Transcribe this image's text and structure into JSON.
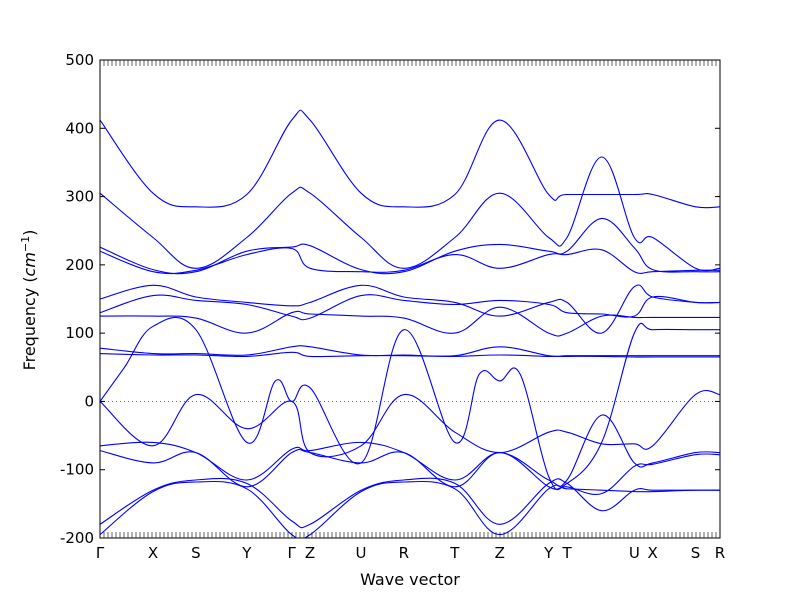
{
  "chart_data": {
    "type": "line",
    "title": "",
    "xlabel": "Wave vector",
    "ylabel": "Frequency (cm⁻¹)",
    "ylabel_parts": {
      "text": "Frequency (",
      "var": "cm",
      "exp": "−1",
      "close": ")"
    },
    "ylim": [
      -200,
      500
    ],
    "yticks": [
      -200,
      -100,
      0,
      100,
      200,
      300,
      400,
      500
    ],
    "xlim": [
      0,
      15.2
    ],
    "points": [
      {
        "label": "Γ",
        "x": 0.0
      },
      {
        "label": "X",
        "x": 1.3
      },
      {
        "label": "S",
        "x": 2.35
      },
      {
        "label": "Y",
        "x": 3.6
      },
      {
        "label": "Γ",
        "x": 4.7
      },
      {
        "label": "Z",
        "x": 5.15
      },
      {
        "label": "U",
        "x": 6.4
      },
      {
        "label": "R",
        "x": 7.45
      },
      {
        "label": "T",
        "x": 8.7
      },
      {
        "label": "Z",
        "x": 9.8
      },
      {
        "label": "Y",
        "x": 11.0
      },
      {
        "label": "T",
        "x": 11.45
      },
      {
        "label": "U",
        "x": 13.1
      },
      {
        "label": "X",
        "x": 13.55
      },
      {
        "label": "S",
        "x": 14.6
      },
      {
        "label": "R",
        "x": 15.2
      }
    ],
    "zero_line": true,
    "grid": false,
    "legend": "none",
    "color": "#0000ff",
    "series": [
      {
        "x": [
          0,
          1.3,
          2.35,
          3.6,
          4.7,
          5.15,
          6.4,
          7.45,
          8.7,
          9.8,
          11.0,
          11.45,
          13.1,
          13.55,
          14.6,
          15.2
        ],
        "y": [
          412,
          305,
          285,
          303,
          412,
          412,
          305,
          285,
          303,
          412,
          303,
          303,
          303,
          303,
          285,
          285
        ]
      },
      {
        "x": [
          0,
          1.3,
          2.35,
          3.6,
          4.7,
          5.15,
          6.4,
          7.45,
          8.7,
          9.8,
          11.0,
          11.45,
          12.3,
          13.1,
          13.55,
          14.6,
          15.2
        ],
        "y": [
          305,
          240,
          195,
          240,
          305,
          305,
          240,
          195,
          240,
          305,
          240,
          240,
          358,
          240,
          240,
          195,
          195
        ]
      },
      {
        "x": [
          0,
          1.3,
          2.35,
          3.6,
          4.7,
          5.15,
          6.4,
          7.45,
          8.7,
          9.8,
          11.0,
          11.45,
          12.3,
          13.1,
          13.55,
          14.6,
          15.2
        ],
        "y": [
          226,
          193,
          190,
          220,
          226,
          228,
          193,
          190,
          220,
          230,
          220,
          220,
          268,
          225,
          193,
          190,
          190
        ]
      },
      {
        "x": [
          0,
          1.3,
          2.35,
          3.6,
          4.7,
          5.15,
          6.4,
          7.45,
          8.7,
          9.8,
          11.0,
          11.45,
          12.3,
          13.1,
          13.55,
          14.6,
          15.2
        ],
        "y": [
          220,
          190,
          192,
          215,
          224,
          195,
          190,
          192,
          215,
          195,
          215,
          215,
          222,
          190,
          190,
          192,
          192
        ]
      },
      {
        "x": [
          0,
          1.3,
          2.35,
          3.6,
          4.7,
          5.15,
          6.4,
          7.45,
          8.7,
          9.8,
          11.0,
          11.45,
          12.3,
          13.1,
          13.55,
          14.6,
          15.2
        ],
        "y": [
          150,
          170,
          153,
          145,
          140,
          145,
          170,
          153,
          145,
          125,
          145,
          145,
          100,
          168,
          153,
          145,
          145
        ]
      },
      {
        "x": [
          0,
          1.3,
          2.35,
          3.6,
          4.7,
          5.15,
          6.4,
          7.45,
          8.7,
          9.8,
          11.0,
          11.45,
          12.3,
          13.1,
          13.55,
          14.6,
          15.2
        ],
        "y": [
          130,
          155,
          148,
          142,
          125,
          122,
          155,
          148,
          142,
          148,
          142,
          130,
          128,
          125,
          153,
          145,
          145
        ]
      },
      {
        "x": [
          0,
          1.3,
          2.35,
          3.6,
          4.7,
          5.15,
          6.4,
          7.45,
          8.7,
          9.8,
          11.0,
          11.45,
          12.3,
          13.1,
          13.55,
          14.6,
          15.2
        ],
        "y": [
          125,
          125,
          122,
          100,
          130,
          128,
          125,
          122,
          100,
          138,
          100,
          100,
          125,
          123,
          123,
          123,
          123
        ]
      },
      {
        "x": [
          0,
          1.3,
          2.35,
          3.6,
          4.7,
          5.15,
          6.4,
          7.45,
          8.7,
          9.8,
          11.0,
          11.45,
          12.3,
          13.1,
          13.55,
          14.6,
          15.2
        ],
        "y": [
          78,
          70,
          70,
          68,
          80,
          80,
          68,
          68,
          67,
          80,
          67,
          67,
          67,
          67,
          67,
          67,
          67
        ]
      },
      {
        "x": [
          0,
          1.3,
          2.35,
          3.6,
          4.7,
          5.15,
          6.4,
          7.45,
          8.7,
          9.8,
          11.0,
          11.45,
          12.3,
          13.1,
          13.55,
          14.6,
          15.2
        ],
        "y": [
          70,
          68,
          68,
          66,
          72,
          66,
          67,
          67,
          66,
          68,
          66,
          66,
          66,
          65,
          65,
          65,
          65
        ]
      },
      {
        "x": [
          0,
          0.6,
          1.3,
          2.35,
          3.6,
          4.3,
          4.7,
          5.15,
          6.4,
          7.45,
          8.7,
          9.3,
          9.8,
          10.3,
          11.0,
          11.45,
          12.3,
          13.1,
          13.55,
          14.6,
          15.2
        ],
        "y": [
          0,
          50,
          110,
          105,
          -60,
          30,
          0,
          20,
          -90,
          105,
          -60,
          40,
          30,
          40,
          -110,
          -120,
          -60,
          100,
          105,
          105,
          105
        ]
      },
      {
        "x": [
          0,
          1.3,
          2.35,
          3.6,
          4.7,
          5.15,
          6.4,
          7.45,
          8.7,
          9.8,
          11.0,
          11.45,
          12.3,
          13.1,
          13.55,
          14.6,
          15.2
        ],
        "y": [
          0,
          -65,
          10,
          -40,
          0,
          -75,
          -65,
          10,
          -45,
          -75,
          -45,
          -45,
          -62,
          -62,
          -65,
          10,
          10
        ]
      },
      {
        "x": [
          0,
          1.3,
          2.35,
          3.6,
          4.7,
          5.15,
          6.4,
          7.45,
          8.7,
          9.8,
          11.0,
          11.45,
          12.3,
          13.1,
          13.55,
          14.6,
          15.2
        ],
        "y": [
          -65,
          -60,
          -75,
          -115,
          -70,
          -72,
          -60,
          -75,
          -115,
          -75,
          -115,
          -115,
          -20,
          -90,
          -90,
          -75,
          -75
        ]
      },
      {
        "x": [
          0,
          1.3,
          2.35,
          3.6,
          4.7,
          5.15,
          6.4,
          7.45,
          8.7,
          9.8,
          11.0,
          11.45,
          12.3,
          13.1,
          13.55,
          14.6,
          15.2
        ],
        "y": [
          -72,
          -90,
          -75,
          -125,
          -75,
          -75,
          -90,
          -75,
          -125,
          -75,
          -125,
          -125,
          -135,
          -95,
          -92,
          -78,
          -78
        ]
      },
      {
        "x": [
          0,
          1.3,
          2.35,
          3.6,
          4.7,
          5.15,
          6.4,
          7.45,
          8.7,
          9.8,
          11.0,
          11.45,
          12.3,
          13.1,
          13.55,
          14.6,
          15.2
        ],
        "y": [
          -180,
          -130,
          -115,
          -120,
          -175,
          -180,
          -130,
          -115,
          -120,
          -180,
          -120,
          -120,
          -160,
          -130,
          -130,
          -130,
          -130
        ]
      },
      {
        "x": [
          0,
          1.3,
          2.35,
          3.6,
          4.7,
          5.15,
          6.4,
          7.45,
          8.7,
          9.8,
          11.0,
          11.45,
          12.3,
          13.1,
          13.55,
          14.6,
          15.2
        ],
        "y": [
          -195,
          -132,
          -118,
          -128,
          -195,
          -195,
          -132,
          -118,
          -128,
          -195,
          -128,
          -128,
          -130,
          -132,
          -132,
          -130,
          -130
        ]
      }
    ]
  }
}
